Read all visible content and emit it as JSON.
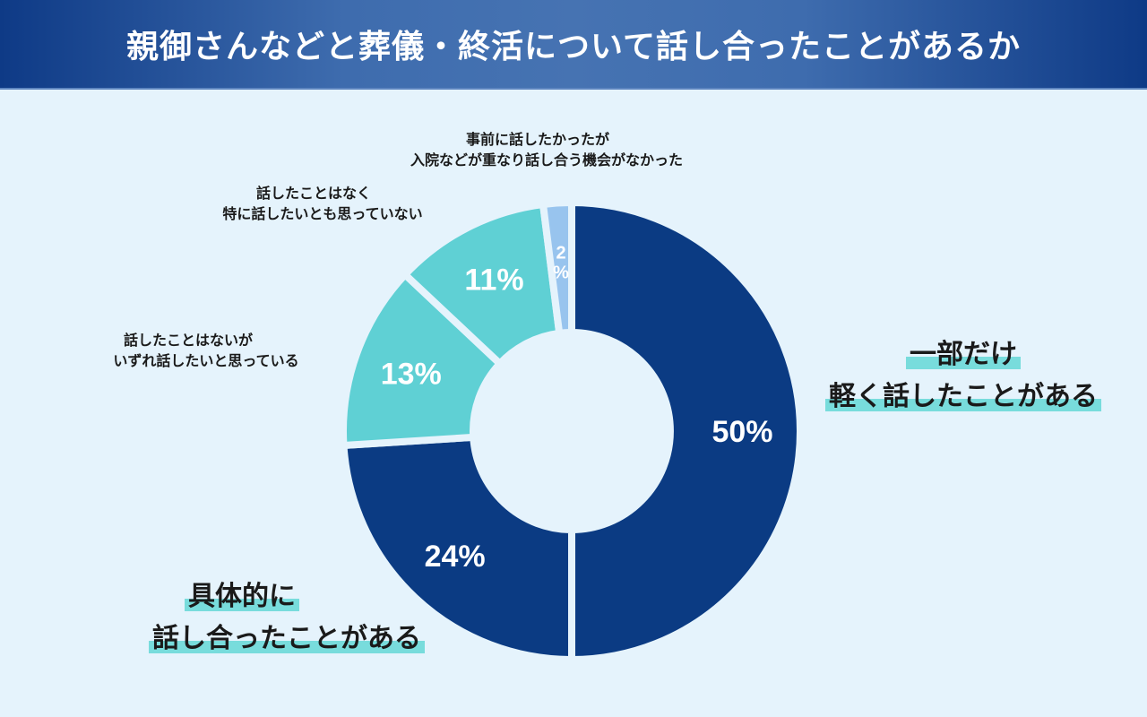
{
  "title": "親御さんなどと葬儀・終活について話し合ったことがあるか",
  "chart_data": {
    "type": "pie",
    "variant": "donut",
    "title": "親御さんなどと葬儀・終活について話し合ったことがあるか",
    "slices": [
      {
        "label_lines": [
          "一部だけ",
          "軽く話したことがある"
        ],
        "value": 50,
        "value_label": "50%",
        "color": "#0b3b83"
      },
      {
        "label_lines": [
          "具体的に",
          "話し合ったことがある"
        ],
        "value": 24,
        "value_label": "24%",
        "color": "#0b3b83"
      },
      {
        "label_lines": [
          "話したことはないが",
          "いずれ話したいと思っている"
        ],
        "value": 13,
        "value_label": "13%",
        "color": "#5fd0d4"
      },
      {
        "label_lines": [
          "話したことはなく",
          "特に話したいとも思っていない"
        ],
        "value": 11,
        "value_label": "11%",
        "color": "#5fd0d4"
      },
      {
        "label_lines": [
          "事前に話したかったが",
          "入院などが重なり話し合う機会がなかった"
        ],
        "value": 2,
        "value_label_lines": [
          "2",
          "%"
        ],
        "color": "#98c4ee"
      }
    ],
    "start": "top",
    "direction": "clockwise"
  }
}
